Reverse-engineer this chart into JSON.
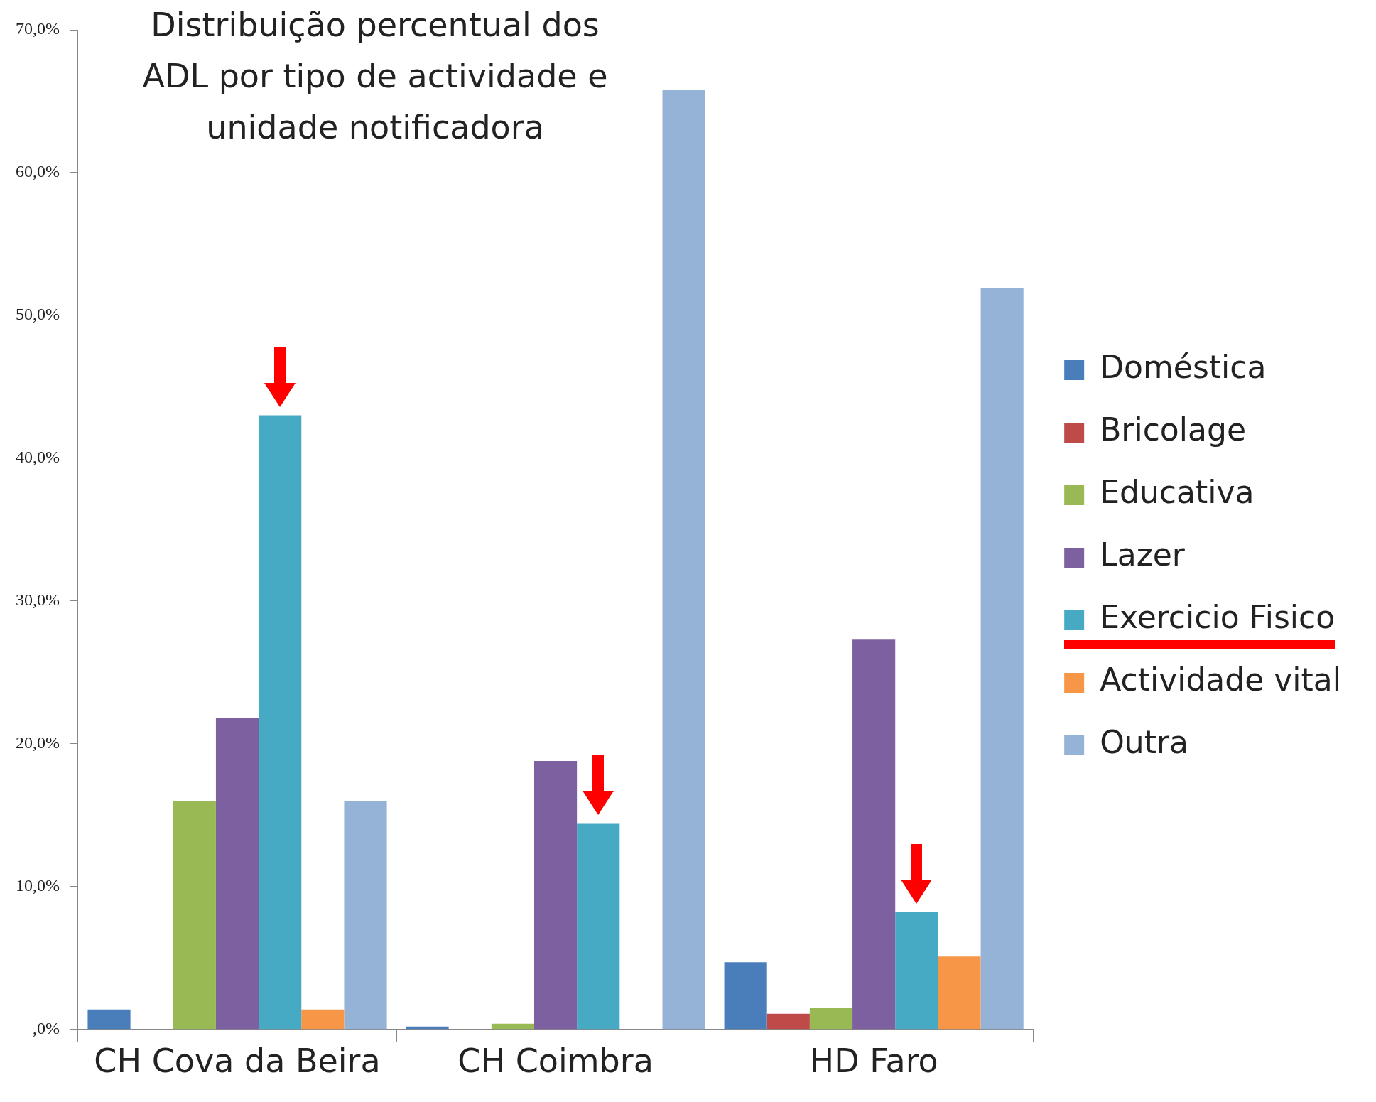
{
  "chart_data": {
    "type": "bar",
    "title": "Distribuição percentual dos ADL por tipo de actividade e unidade notificadora",
    "categories": [
      "CH Cova da Beira",
      "CH Coimbra",
      "HD Faro"
    ],
    "series": [
      {
        "name": "Doméstica",
        "color": "#4a7ebb",
        "values": [
          1.4,
          0.2,
          4.7
        ]
      },
      {
        "name": "Bricolage",
        "color": "#be4b48",
        "values": [
          0,
          0,
          1.1
        ]
      },
      {
        "name": "Educativa",
        "color": "#98b954",
        "values": [
          16.0,
          0.4,
          1.5
        ]
      },
      {
        "name": "Lazer",
        "color": "#7d60a0",
        "values": [
          21.8,
          18.8,
          27.3
        ]
      },
      {
        "name": "Exercicio Fisico",
        "color": "#46aac5",
        "values": [
          43.0,
          14.4,
          8.2
        ]
      },
      {
        "name": "Actividade vital",
        "color": "#f79646",
        "values": [
          1.4,
          0,
          5.1
        ]
      },
      {
        "name": "Outra",
        "color": "#95b3d7",
        "values": [
          16.0,
          65.8,
          51.9
        ]
      }
    ],
    "ylim": [
      0,
      70
    ],
    "yticks": [
      {
        "value": 0,
        "label": ",0%"
      },
      {
        "value": 10,
        "label": "10,0%"
      },
      {
        "value": 20,
        "label": "20,0%"
      },
      {
        "value": 30,
        "label": "30,0%"
      },
      {
        "value": 40,
        "label": "40,0%"
      },
      {
        "value": 50,
        "label": "50,0%"
      },
      {
        "value": 60,
        "label": "60,0%"
      },
      {
        "value": 70,
        "label": "70,0%"
      }
    ],
    "grid": false,
    "legend": "right"
  }
}
